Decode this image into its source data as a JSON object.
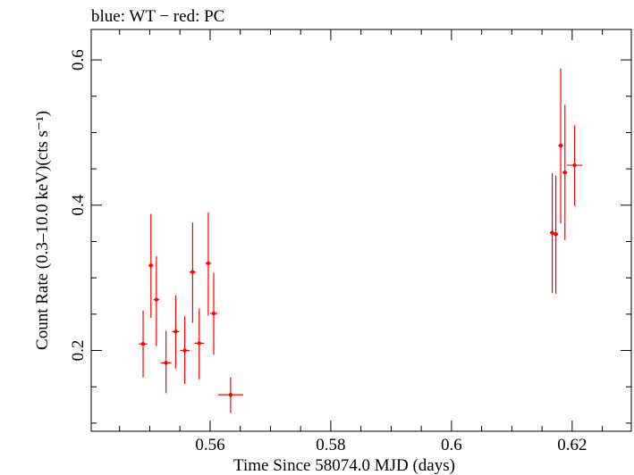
{
  "chart_data": {
    "type": "scatter",
    "title": "blue: WT − red: PC",
    "xlabel": "Time Since 58074.0 MJD (days)",
    "ylabel": "Count Rate (0.3–10.0 keV)(cts s⁻¹)",
    "xlim": [
      0.5403,
      0.6298
    ],
    "ylim": [
      0.0888,
      0.6419
    ],
    "x_ticks": [
      0.56,
      0.58,
      0.6,
      0.62
    ],
    "x_tick_labels": [
      "0.56",
      "0.58",
      "0.6",
      "0.62"
    ],
    "y_ticks": [
      0.2,
      0.4,
      0.6
    ],
    "y_tick_labels": [
      "0.2",
      "0.4",
      "0.6"
    ],
    "grid": false,
    "series": [
      {
        "color": "#ff0000",
        "points": [
          {
            "x": 0.5489,
            "y": 0.209,
            "xerr": 0.0007,
            "yerr_low": 0.046,
            "yerr_high": 0.046
          },
          {
            "x": 0.5502,
            "y": 0.317,
            "xerr": 0.0004,
            "yerr_low": 0.072,
            "yerr_high": 0.071
          },
          {
            "x": 0.5511,
            "y": 0.27,
            "xerr": 0.0005,
            "yerr_low": 0.064,
            "yerr_high": 0.06
          },
          {
            "x": 0.5527,
            "y": 0.183,
            "xerr": 0.0009,
            "yerr_low": 0.042,
            "yerr_high": 0.044
          },
          {
            "x": 0.5543,
            "y": 0.226,
            "xerr": 0.0006,
            "yerr_low": 0.051,
            "yerr_high": 0.05
          },
          {
            "x": 0.5558,
            "y": 0.2,
            "xerr": 0.0008,
            "yerr_low": 0.046,
            "yerr_high": 0.047
          },
          {
            "x": 0.5571,
            "y": 0.308,
            "xerr": 0.0005,
            "yerr_low": 0.07,
            "yerr_high": 0.068
          },
          {
            "x": 0.5582,
            "y": 0.21,
            "xerr": 0.0008,
            "yerr_low": 0.05,
            "yerr_high": 0.048
          },
          {
            "x": 0.5597,
            "y": 0.32,
            "xerr": 0.0005,
            "yerr_low": 0.072,
            "yerr_high": 0.07
          },
          {
            "x": 0.5606,
            "y": 0.251,
            "xerr": 0.0006,
            "yerr_low": 0.057,
            "yerr_high": 0.056
          },
          {
            "x": 0.5634,
            "y": 0.139,
            "xerr": 0.0021,
            "yerr_low": 0.025,
            "yerr_high": 0.024
          },
          {
            "x": 0.6167,
            "y": 0.362,
            "xerr": 0.0004,
            "yerr_low": 0.083,
            "yerr_high": 0.082
          },
          {
            "x": 0.6173,
            "y": 0.36,
            "xerr": 0.0004,
            "yerr_low": 0.082,
            "yerr_high": 0.081
          },
          {
            "x": 0.6181,
            "y": 0.482,
            "xerr": 0.0004,
            "yerr_low": 0.107,
            "yerr_high": 0.106
          },
          {
            "x": 0.6188,
            "y": 0.445,
            "xerr": 0.0004,
            "yerr_low": 0.093,
            "yerr_high": 0.093
          },
          {
            "x": 0.6204,
            "y": 0.455,
            "xerr": 0.0013,
            "yerr_low": 0.056,
            "yerr_high": 0.055
          }
        ]
      }
    ]
  }
}
